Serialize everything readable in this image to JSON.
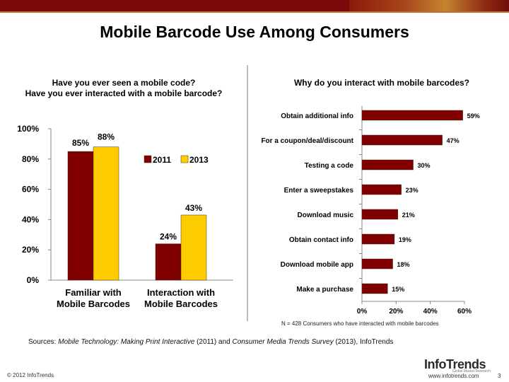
{
  "slide_title": "Mobile Barcode Use Among Consumers",
  "colors": {
    "band": "#7a0a0a",
    "y2011": "#800000",
    "y2013": "#ffcc00"
  },
  "chart_data": [
    {
      "type": "bar",
      "title_lines": [
        "Have you ever seen a mobile code?",
        "Have you ever interacted with a mobile barcode?"
      ],
      "categories": [
        [
          "Familiar with",
          "Mobile Barcodes"
        ],
        [
          "Interaction with",
          "Mobile Barcodes"
        ]
      ],
      "series": [
        {
          "name": "2011",
          "values": [
            85,
            24
          ],
          "labels": [
            "85%",
            "24%"
          ]
        },
        {
          "name": "2013",
          "values": [
            88,
            43
          ],
          "labels": [
            "88%",
            "43%"
          ]
        }
      ],
      "y_ticks": [
        "0%",
        "20%",
        "40%",
        "60%",
        "80%",
        "100%"
      ],
      "ylim": [
        0,
        100
      ],
      "legend_position": "top-right"
    },
    {
      "type": "bar",
      "orientation": "horizontal",
      "title": "Why do you interact with mobile barcodes?",
      "categories": [
        "Obtain additional info",
        "For a coupon/deal/discount",
        "Testing a code",
        "Enter a sweepstakes",
        "Download music",
        "Obtain contact info",
        "Download mobile app",
        "Make a purchase"
      ],
      "values": [
        59,
        47,
        30,
        23,
        21,
        19,
        18,
        15
      ],
      "labels": [
        "59%",
        "47%",
        "30%",
        "23%",
        "21%",
        "19%",
        "18%",
        "15%"
      ],
      "x_ticks": [
        "0%",
        "20%",
        "40%",
        "60%"
      ],
      "xlim": [
        0,
        60
      ],
      "note": "N = 428 Consumers who have interacted with mobile barcodes"
    }
  ],
  "sources": {
    "prefix": "Sources: ",
    "title1": "Mobile Technology: Making Print Interactive",
    "mid": " (2011) and ",
    "title2": "Consumer Media Trends Survey",
    "suffix": " (2013), InfoTrends"
  },
  "footer": {
    "copyright": "© 2012 InfoTrends",
    "logo": "InfoTrends",
    "logo_sub": "Global Market Research",
    "url": "www.infotrends.com",
    "page": "3"
  }
}
